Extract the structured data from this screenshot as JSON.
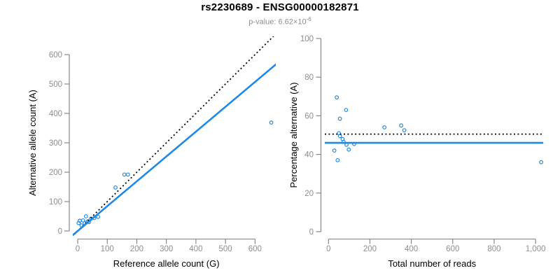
{
  "header": {
    "title": "rs2230689 - ENSG00000182871",
    "subtitle_prefix": "p-value: 6.62×10",
    "subtitle_exponent": "-6"
  },
  "colors": {
    "accent_blue": "#1E8AE8",
    "dotted_line_black": "#000000",
    "axis_line_gray": "#7F7F7F",
    "tick_label_gray": "#8E8E8E",
    "axis_title_black": "#000000",
    "subtitle_gray": "#8E8E8E",
    "background": "#FFFFFF"
  },
  "chart_data": [
    {
      "type": "scatter",
      "panel": "left",
      "xlabel": "Reference allele count (G)",
      "ylabel": "Alternative allele count (A)",
      "xlim": [
        0,
        600
      ],
      "ylim": [
        0,
        600
      ],
      "grid": false,
      "legend": "none",
      "xticks": [
        0,
        100,
        200,
        300,
        400,
        500,
        600
      ],
      "xtick_labels": [
        "0",
        "100",
        "200",
        "300",
        "400",
        "500",
        "600"
      ],
      "yticks": [
        0,
        100,
        200,
        300,
        400,
        500,
        600
      ],
      "ytick_labels": [
        "0",
        "100",
        "200",
        "300",
        "400",
        "500",
        "600"
      ],
      "points": [
        [
          3,
          27
        ],
        [
          7,
          35
        ],
        [
          13,
          19
        ],
        [
          18,
          36
        ],
        [
          24,
          27
        ],
        [
          28,
          50
        ],
        [
          34,
          33
        ],
        [
          38,
          30
        ],
        [
          45,
          42
        ],
        [
          56,
          44
        ],
        [
          69,
          48
        ],
        [
          128,
          148
        ],
        [
          158,
          192
        ],
        [
          170,
          192
        ],
        [
          655,
          369
        ]
      ],
      "lines": [
        {
          "name": "identity-line",
          "style": "dotted",
          "color": "#000000",
          "slope": 1,
          "intercept": 0,
          "width": 1.8
        },
        {
          "name": "fit-line",
          "style": "solid",
          "color": "#1E8AE8",
          "slope": 0.845,
          "intercept": 0,
          "width": 2.6
        }
      ]
    },
    {
      "type": "scatter",
      "panel": "right",
      "xlabel": "Total number of reads",
      "ylabel": "Percentage alternative (A)",
      "xlim": [
        0,
        1000
      ],
      "ylim": [
        0,
        100
      ],
      "grid": false,
      "legend": "none",
      "xticks": [
        0,
        200,
        400,
        600,
        800,
        1000
      ],
      "xtick_labels": [
        "0",
        "200",
        "400",
        "600",
        "800",
        "1,000"
      ],
      "yticks": [
        0,
        20,
        40,
        60,
        80,
        100
      ],
      "ytick_labels": [
        "0",
        "20",
        "40",
        "60",
        "80",
        "100"
      ],
      "points": [
        [
          28,
          42
        ],
        [
          40,
          69.5
        ],
        [
          44,
          37
        ],
        [
          50,
          51
        ],
        [
          55,
          58.5
        ],
        [
          55,
          49.5
        ],
        [
          68,
          48
        ],
        [
          73,
          46.5
        ],
        [
          85,
          63
        ],
        [
          87,
          45
        ],
        [
          98,
          42.5
        ],
        [
          124,
          45.4
        ],
        [
          270,
          54
        ],
        [
          351,
          55
        ],
        [
          366,
          52.5
        ],
        [
          1027,
          36
        ]
      ],
      "lines": [
        {
          "name": "expected-percentage-line",
          "style": "dotted",
          "color": "#000000",
          "hline": 50.5,
          "width": 1.8
        },
        {
          "name": "observed-percentage-line",
          "style": "solid",
          "color": "#1E8AE8",
          "hline": 46,
          "width": 2.6
        }
      ]
    }
  ]
}
